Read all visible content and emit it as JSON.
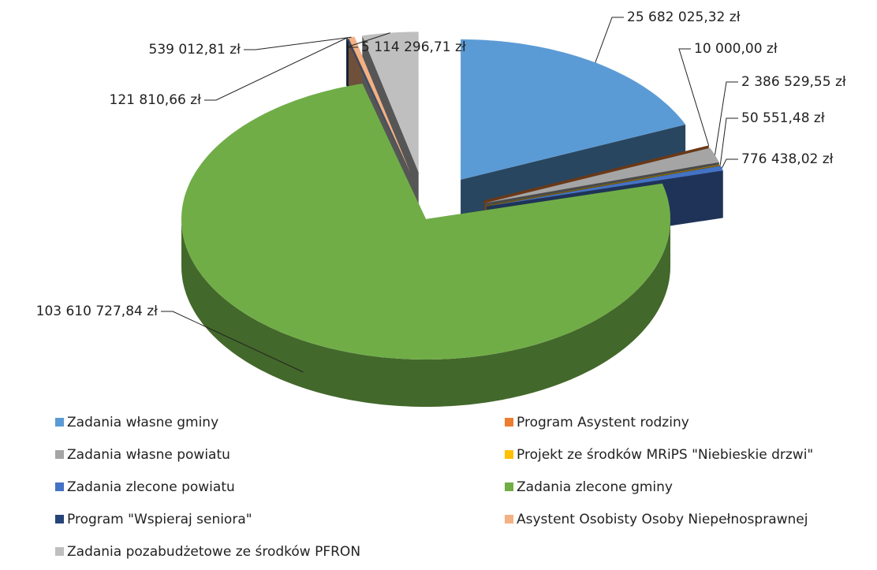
{
  "chart_data": {
    "type": "pie",
    "categories": [
      "Zadania własne gminy",
      "Program Asystent rodziny",
      "Zadania własne powiatu",
      "Projekt ze środków MRiPS \"Niebieskie drzwi\"",
      "Zadania zlecone powiatu",
      "Zadania zlecone gminy",
      "Program \"Wspieraj seniora\"",
      "Asystent Osobisty Osoby Niepełnosprawnej",
      "Zadania pozabudżetowe ze środków PFRON"
    ],
    "values": [
      25682025.32,
      10000.0,
      2386529.55,
      50551.48,
      776438.02,
      103610727.84,
      121810.66,
      539012.81,
      5114296.71
    ],
    "value_labels": [
      "25 682 025,32 zł",
      "10 000,00 zł",
      "2 386 529,55 zł",
      "50 551,48 zł",
      "776 438,02 zł",
      "103 610 727,84 zł",
      "121 810,66 zł",
      "539 012,81 zł",
      "5 114 296,71 zł"
    ],
    "colors": [
      "#5b9bd5",
      "#ed7d31",
      "#a5a5a5",
      "#ffc000",
      "#4472c4",
      "#70ad47",
      "#264478",
      "#f4b183",
      "#bfbfbf"
    ],
    "legend": "bottom"
  }
}
